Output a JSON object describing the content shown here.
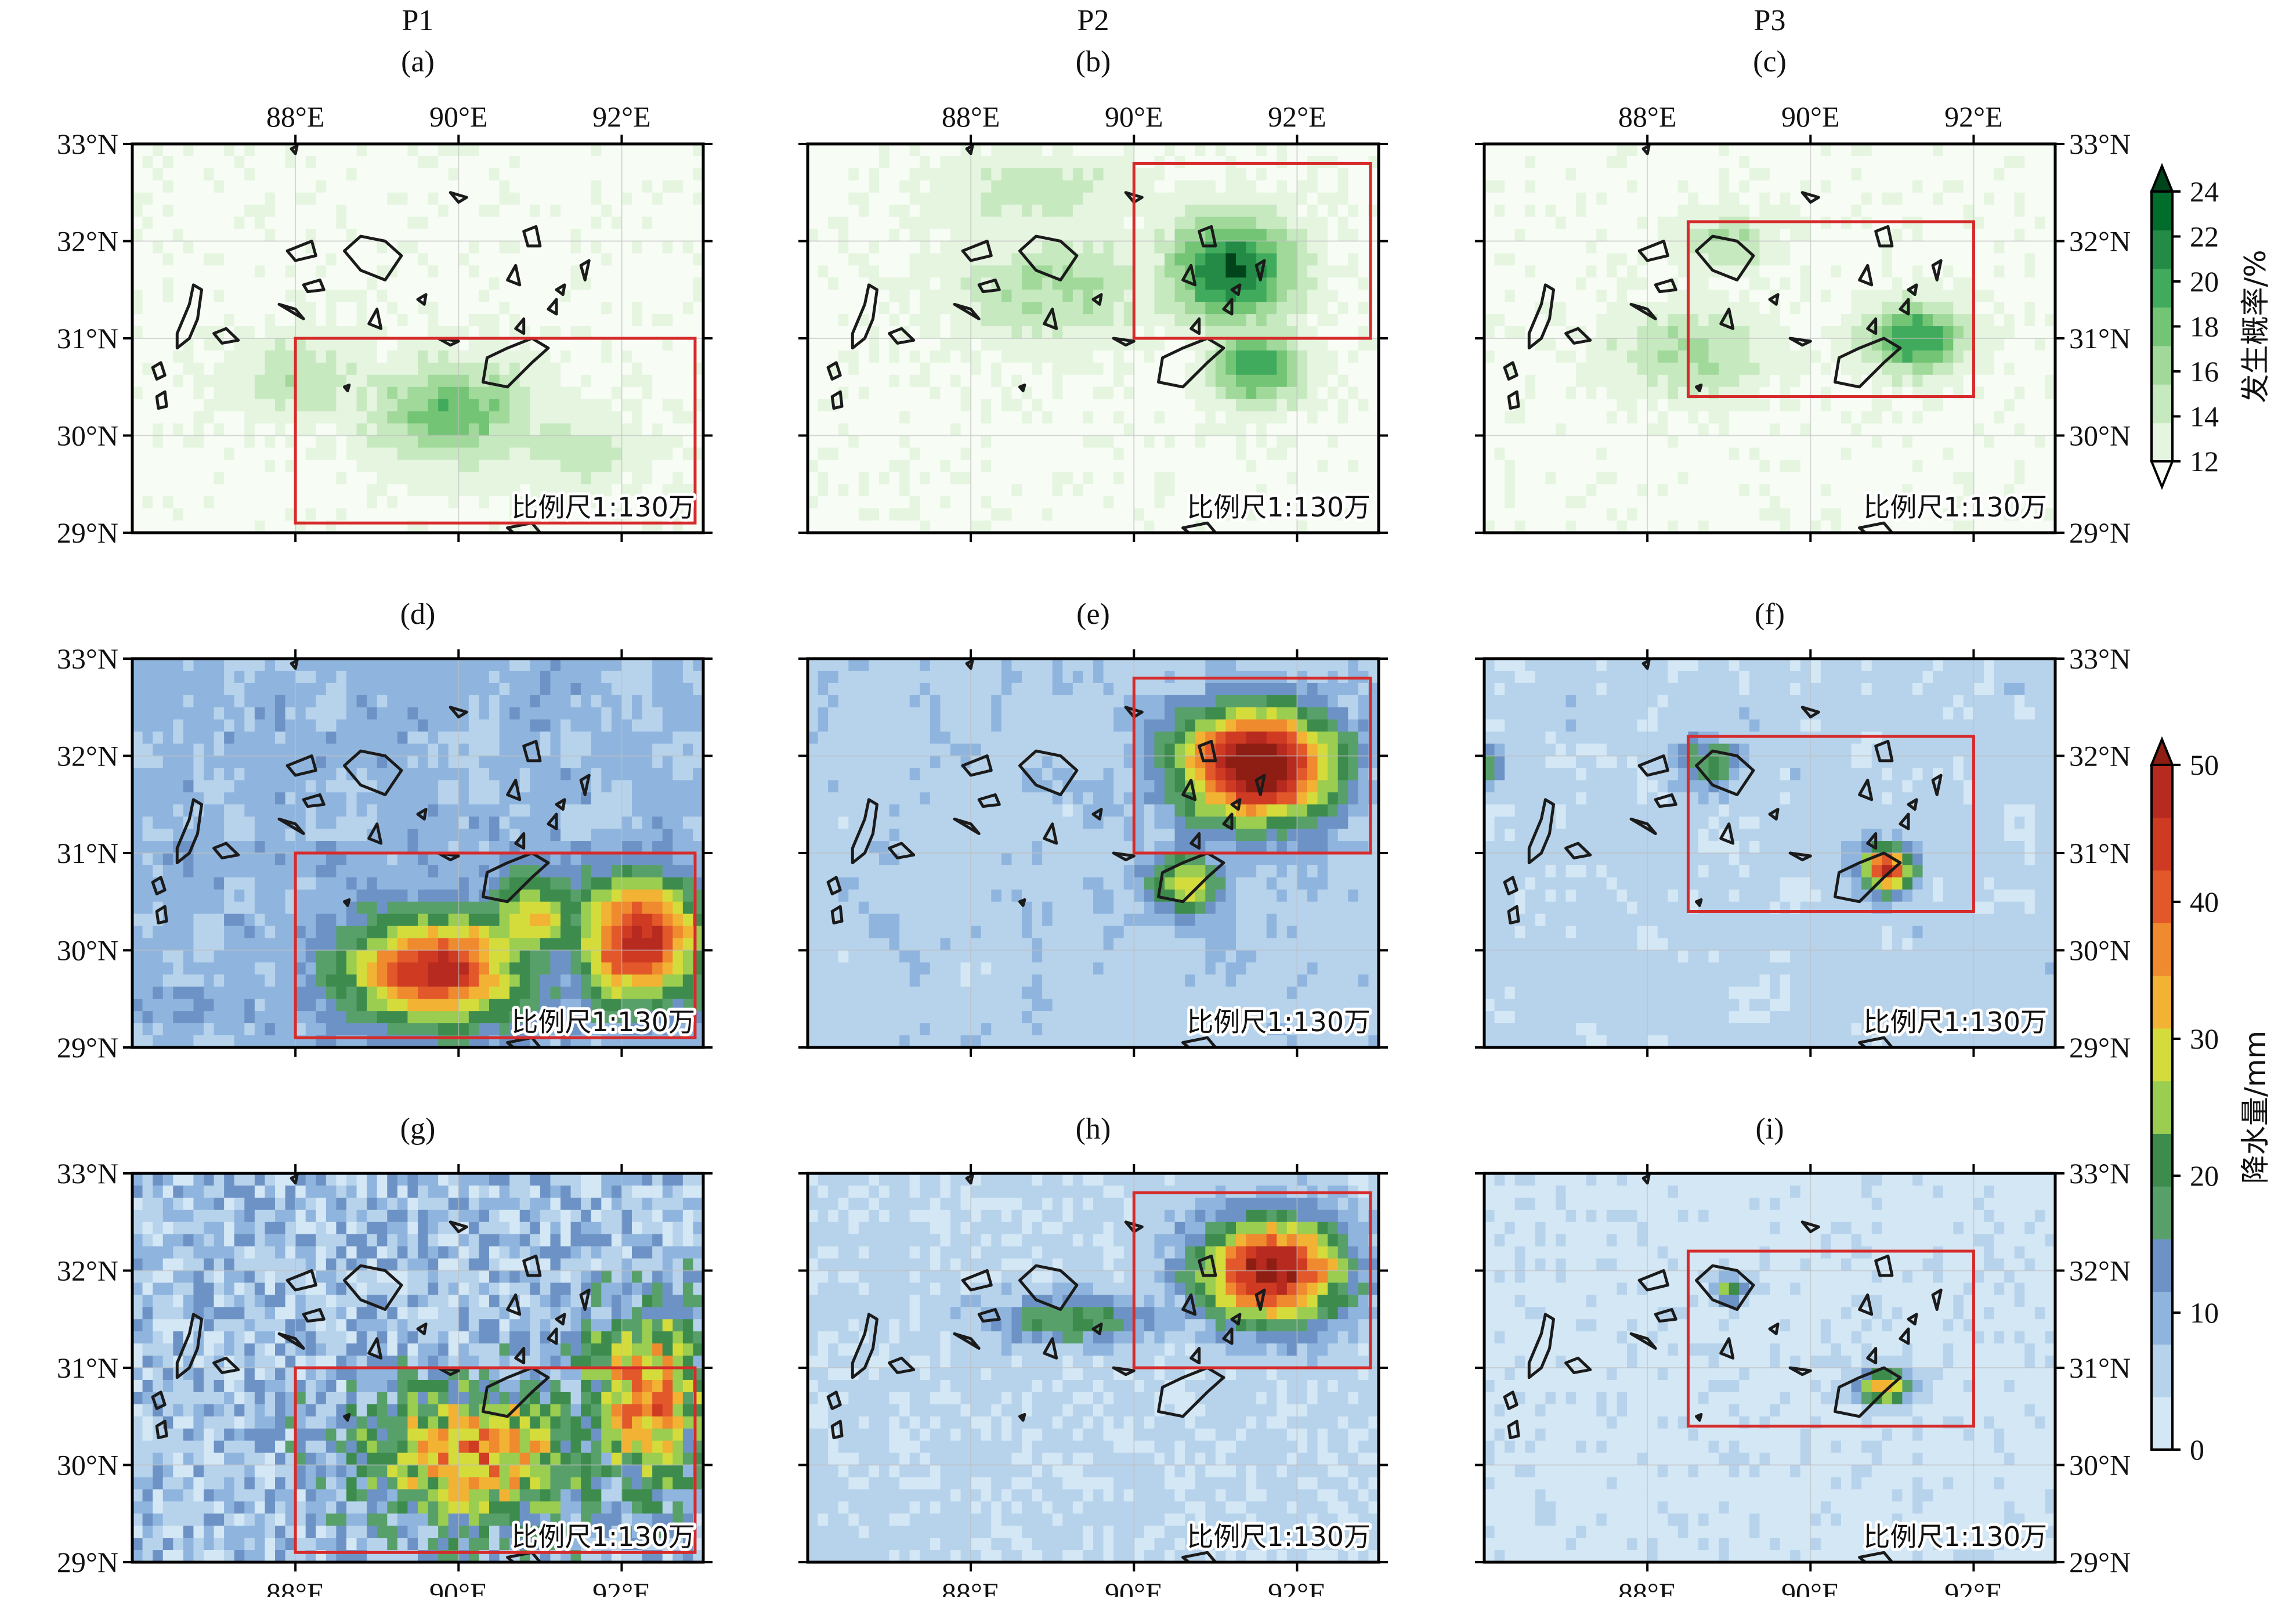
{
  "columns": [
    "P1",
    "P2",
    "P3"
  ],
  "panel_letters": [
    "(a)",
    "(b)",
    "(c)",
    "(d)",
    "(e)",
    "(f)",
    "(g)",
    "(h)",
    "(i)"
  ],
  "scale_label": "比例尺1:130万",
  "lon_ticks": [
    {
      "v": 88,
      "t": "88°E"
    },
    {
      "v": 90,
      "t": "90°E"
    },
    {
      "v": 92,
      "t": "92°E"
    }
  ],
  "lat_ticks": [
    {
      "v": 29,
      "t": "29°N"
    },
    {
      "v": 30,
      "t": "30°N"
    },
    {
      "v": 31,
      "t": "31°N"
    },
    {
      "v": 32,
      "t": "32°N"
    },
    {
      "v": 33,
      "t": "33°N"
    }
  ],
  "extent": {
    "lon": [
      86.0,
      93.0
    ],
    "lat": [
      29.0,
      33.0
    ]
  },
  "colorbars": [
    {
      "title": "发生概率/%",
      "ticks": [
        "12",
        "14",
        "16",
        "18",
        "20",
        "22",
        "24"
      ],
      "range": [
        12,
        24
      ],
      "extend": "both",
      "colors": [
        "#f7fcf5",
        "#e5f5e0",
        "#c7e9c0",
        "#a1d99b",
        "#74c476",
        "#41ab5d",
        "#238b45",
        "#006d2c",
        "#00441b"
      ]
    },
    {
      "title": "降水量/mm",
      "ticks": [
        "0",
        "10",
        "20",
        "30",
        "40",
        "50"
      ],
      "range": [
        0,
        50
      ],
      "extend": "max",
      "colors": [
        "#d4e7f5",
        "#b7d3ec",
        "#8fb5df",
        "#6d93c6",
        "#58a06a",
        "#3d8c4e",
        "#9acd50",
        "#d4dc3c",
        "#f2b233",
        "#ef8a2e",
        "#e2582a",
        "#cf3a22",
        "#b62a1f",
        "#8e1d14"
      ]
    }
  ],
  "chart_data": [
    {
      "panel": "(a)",
      "column": "P1",
      "type": "heatmap",
      "variable": "发生概率/%",
      "region_box": {
        "lon": [
          88.0,
          92.9
        ],
        "lat": [
          29.1,
          31.0
        ]
      },
      "blobs": [
        {
          "lon": 89.9,
          "lat": 30.25,
          "peak": 19,
          "sx": 1.0,
          "sy": 0.5
        },
        {
          "lon": 88.1,
          "lat": 30.6,
          "peak": 15,
          "sx": 0.9,
          "sy": 0.45
        },
        {
          "lon": 91.4,
          "lat": 29.85,
          "peak": 14.5,
          "sx": 0.8,
          "sy": 0.4
        }
      ]
    },
    {
      "panel": "(b)",
      "column": "P2",
      "type": "heatmap",
      "variable": "发生概率/%",
      "region_box": {
        "lon": [
          90.0,
          92.9
        ],
        "lat": [
          31.0,
          32.8
        ]
      },
      "blobs": [
        {
          "lon": 91.2,
          "lat": 31.7,
          "peak": 24,
          "sx": 0.75,
          "sy": 0.55
        },
        {
          "lon": 91.5,
          "lat": 30.7,
          "peak": 21,
          "sx": 0.55,
          "sy": 0.4
        },
        {
          "lon": 89.0,
          "lat": 31.5,
          "peak": 16,
          "sx": 1.2,
          "sy": 0.55
        },
        {
          "lon": 88.8,
          "lat": 32.5,
          "peak": 15,
          "sx": 1.2,
          "sy": 0.35
        }
      ]
    },
    {
      "panel": "(c)",
      "column": "P3",
      "type": "heatmap",
      "variable": "发生概率/%",
      "region_box": {
        "lon": [
          88.5,
          92.0
        ],
        "lat": [
          30.4,
          32.2
        ]
      },
      "blobs": [
        {
          "lon": 91.3,
          "lat": 31.0,
          "peak": 22,
          "sx": 0.6,
          "sy": 0.35
        },
        {
          "lon": 88.5,
          "lat": 30.85,
          "peak": 16,
          "sx": 1.0,
          "sy": 0.45
        },
        {
          "lon": 89.0,
          "lat": 32.0,
          "peak": 16,
          "sx": 0.5,
          "sy": 0.3
        }
      ]
    },
    {
      "panel": "(d)",
      "column": "P1",
      "type": "heatmap",
      "variable": "降水量/mm",
      "region_box": {
        "lon": [
          88.0,
          92.9
        ],
        "lat": [
          29.1,
          31.0
        ]
      },
      "blobs": [
        {
          "lon": 89.7,
          "lat": 29.8,
          "peak": 44,
          "sx": 1.05,
          "sy": 0.55
        },
        {
          "lon": 92.2,
          "lat": 30.1,
          "peak": 46,
          "sx": 0.7,
          "sy": 0.6
        },
        {
          "lon": 90.9,
          "lat": 30.35,
          "peak": 30,
          "sx": 0.6,
          "sy": 0.45
        }
      ],
      "background_mm": 11
    },
    {
      "panel": "(e)",
      "column": "P2",
      "type": "heatmap",
      "variable": "降水量/mm",
      "region_box": {
        "lon": [
          90.0,
          92.9
        ],
        "lat": [
          31.0,
          32.8
        ]
      },
      "blobs": [
        {
          "lon": 91.5,
          "lat": 31.9,
          "peak": 52,
          "sx": 0.95,
          "sy": 0.6
        },
        {
          "lon": 90.6,
          "lat": 30.7,
          "peak": 28,
          "sx": 0.5,
          "sy": 0.35
        }
      ],
      "background_mm": 8
    },
    {
      "panel": "(f)",
      "column": "P3",
      "type": "heatmap",
      "variable": "降水量/mm",
      "region_box": {
        "lon": [
          88.5,
          92.0
        ],
        "lat": [
          30.4,
          32.2
        ]
      },
      "blobs": [
        {
          "lon": 90.95,
          "lat": 30.85,
          "peak": 46,
          "sx": 0.3,
          "sy": 0.22
        },
        {
          "lon": 88.8,
          "lat": 31.95,
          "peak": 22,
          "sx": 0.35,
          "sy": 0.25
        },
        {
          "lon": 86.0,
          "lat": 31.9,
          "peak": 18,
          "sx": 0.3,
          "sy": 0.2
        }
      ],
      "background_mm": 7
    },
    {
      "panel": "(g)",
      "column": "P1",
      "type": "heatmap",
      "variable": "降水量/mm",
      "region_box": {
        "lon": [
          88.0,
          92.9
        ],
        "lat": [
          29.1,
          31.0
        ]
      },
      "blobs": [
        {
          "lon": 90.2,
          "lat": 30.1,
          "peak": 34,
          "sx": 1.4,
          "sy": 0.7
        },
        {
          "lon": 92.3,
          "lat": 30.7,
          "peak": 36,
          "sx": 0.7,
          "sy": 0.9
        }
      ],
      "background_mm": 9,
      "noise": 14
    },
    {
      "panel": "(h)",
      "column": "P2",
      "type": "heatmap",
      "variable": "降水量/mm",
      "region_box": {
        "lon": [
          90.0,
          92.9
        ],
        "lat": [
          31.0,
          32.8
        ]
      },
      "blobs": [
        {
          "lon": 91.7,
          "lat": 32.0,
          "peak": 48,
          "sx": 0.9,
          "sy": 0.55
        },
        {
          "lon": 89.3,
          "lat": 31.5,
          "peak": 22,
          "sx": 1.0,
          "sy": 0.25
        }
      ],
      "background_mm": 6,
      "noise": 6
    },
    {
      "panel": "(i)",
      "column": "P3",
      "type": "heatmap",
      "variable": "降水量/mm",
      "region_box": {
        "lon": [
          88.5,
          92.0
        ],
        "lat": [
          30.4,
          32.2
        ]
      },
      "blobs": [
        {
          "lon": 90.9,
          "lat": 30.8,
          "peak": 34,
          "sx": 0.35,
          "sy": 0.18
        },
        {
          "lon": 89.0,
          "lat": 31.8,
          "peak": 26,
          "sx": 0.2,
          "sy": 0.15
        }
      ],
      "background_mm": 4,
      "noise": 3
    }
  ]
}
